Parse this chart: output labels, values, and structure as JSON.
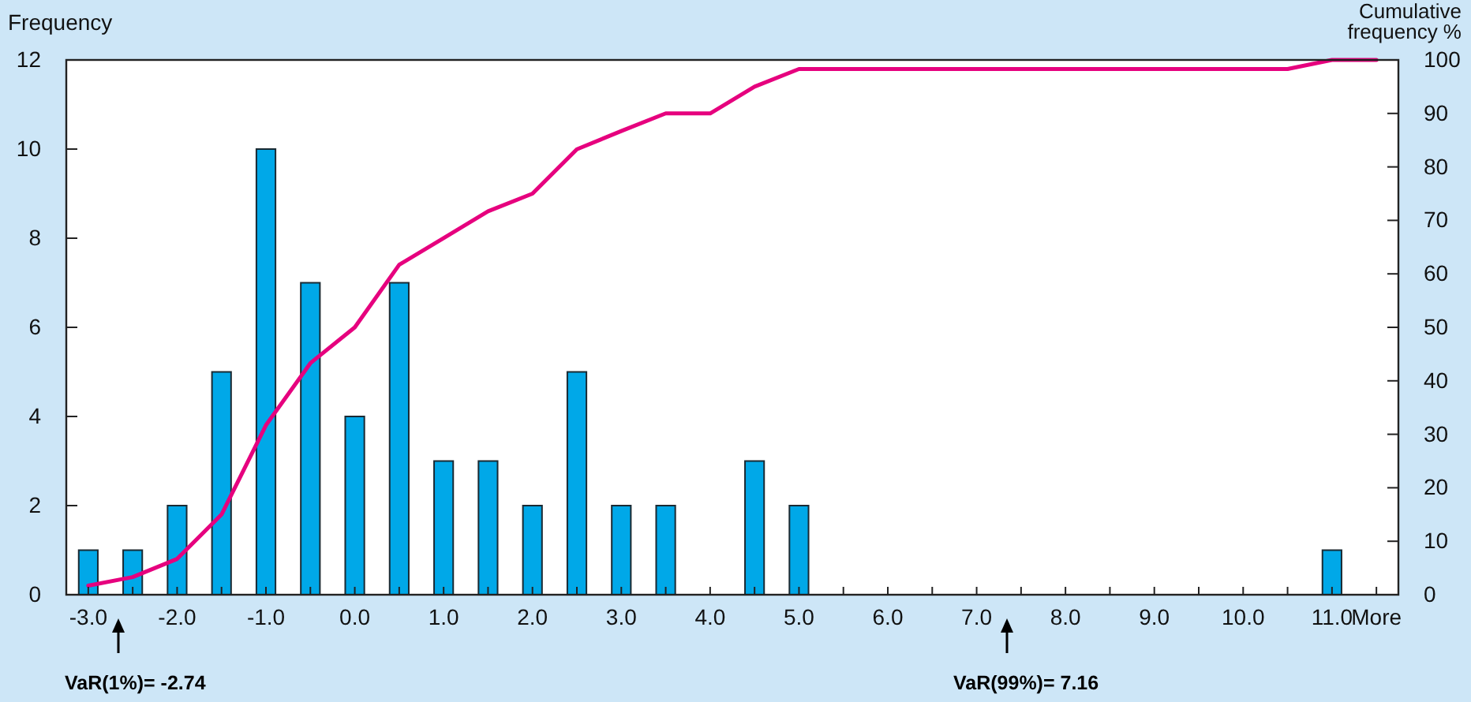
{
  "chart_data": {
    "type": "bar",
    "ylabel": "Frequency",
    "y2label": "Cumulative frequency %",
    "categories": [
      "-3.0",
      null,
      "-2.0",
      null,
      "-1.0",
      null,
      "0.0",
      null,
      "1.0",
      null,
      "2.0",
      null,
      "3.0",
      null,
      "4.0",
      null,
      "5.0",
      null,
      "6.0",
      null,
      "7.0",
      null,
      "8.0",
      null,
      "9.0",
      null,
      "10.0",
      null,
      "11.0",
      "More"
    ],
    "series": [
      {
        "color": "#00a8e8",
        "values": [
          1,
          1,
          2,
          5,
          10,
          7,
          4,
          7,
          3,
          3,
          2,
          5,
          2,
          2,
          0,
          3,
          2,
          0,
          0,
          0,
          0,
          0,
          0,
          0,
          0,
          0,
          0,
          0,
          1,
          0
        ]
      },
      {
        "type": "line",
        "axis": "y2",
        "color": "#e6007e",
        "values": [
          1.7,
          3.3,
          6.7,
          15,
          31.7,
          43.3,
          50,
          61.7,
          66.7,
          71.7,
          75,
          83.3,
          86.7,
          90,
          90,
          95,
          98.3,
          98.3,
          98.3,
          98.3,
          98.3,
          98.3,
          98.3,
          98.3,
          98.3,
          98.3,
          98.3,
          98.3,
          100,
          100
        ]
      }
    ],
    "ylim": [
      0,
      12
    ],
    "yticks": [
      0,
      2,
      4,
      6,
      8,
      10,
      12
    ],
    "y2lim": [
      0,
      100
    ],
    "y2ticks": [
      0,
      10,
      20,
      30,
      40,
      50,
      60,
      70,
      80,
      90,
      100
    ],
    "grid": false,
    "annotations": [
      "VaR(1%)= -2.74",
      "VaR(99%)= 7.16"
    ]
  }
}
